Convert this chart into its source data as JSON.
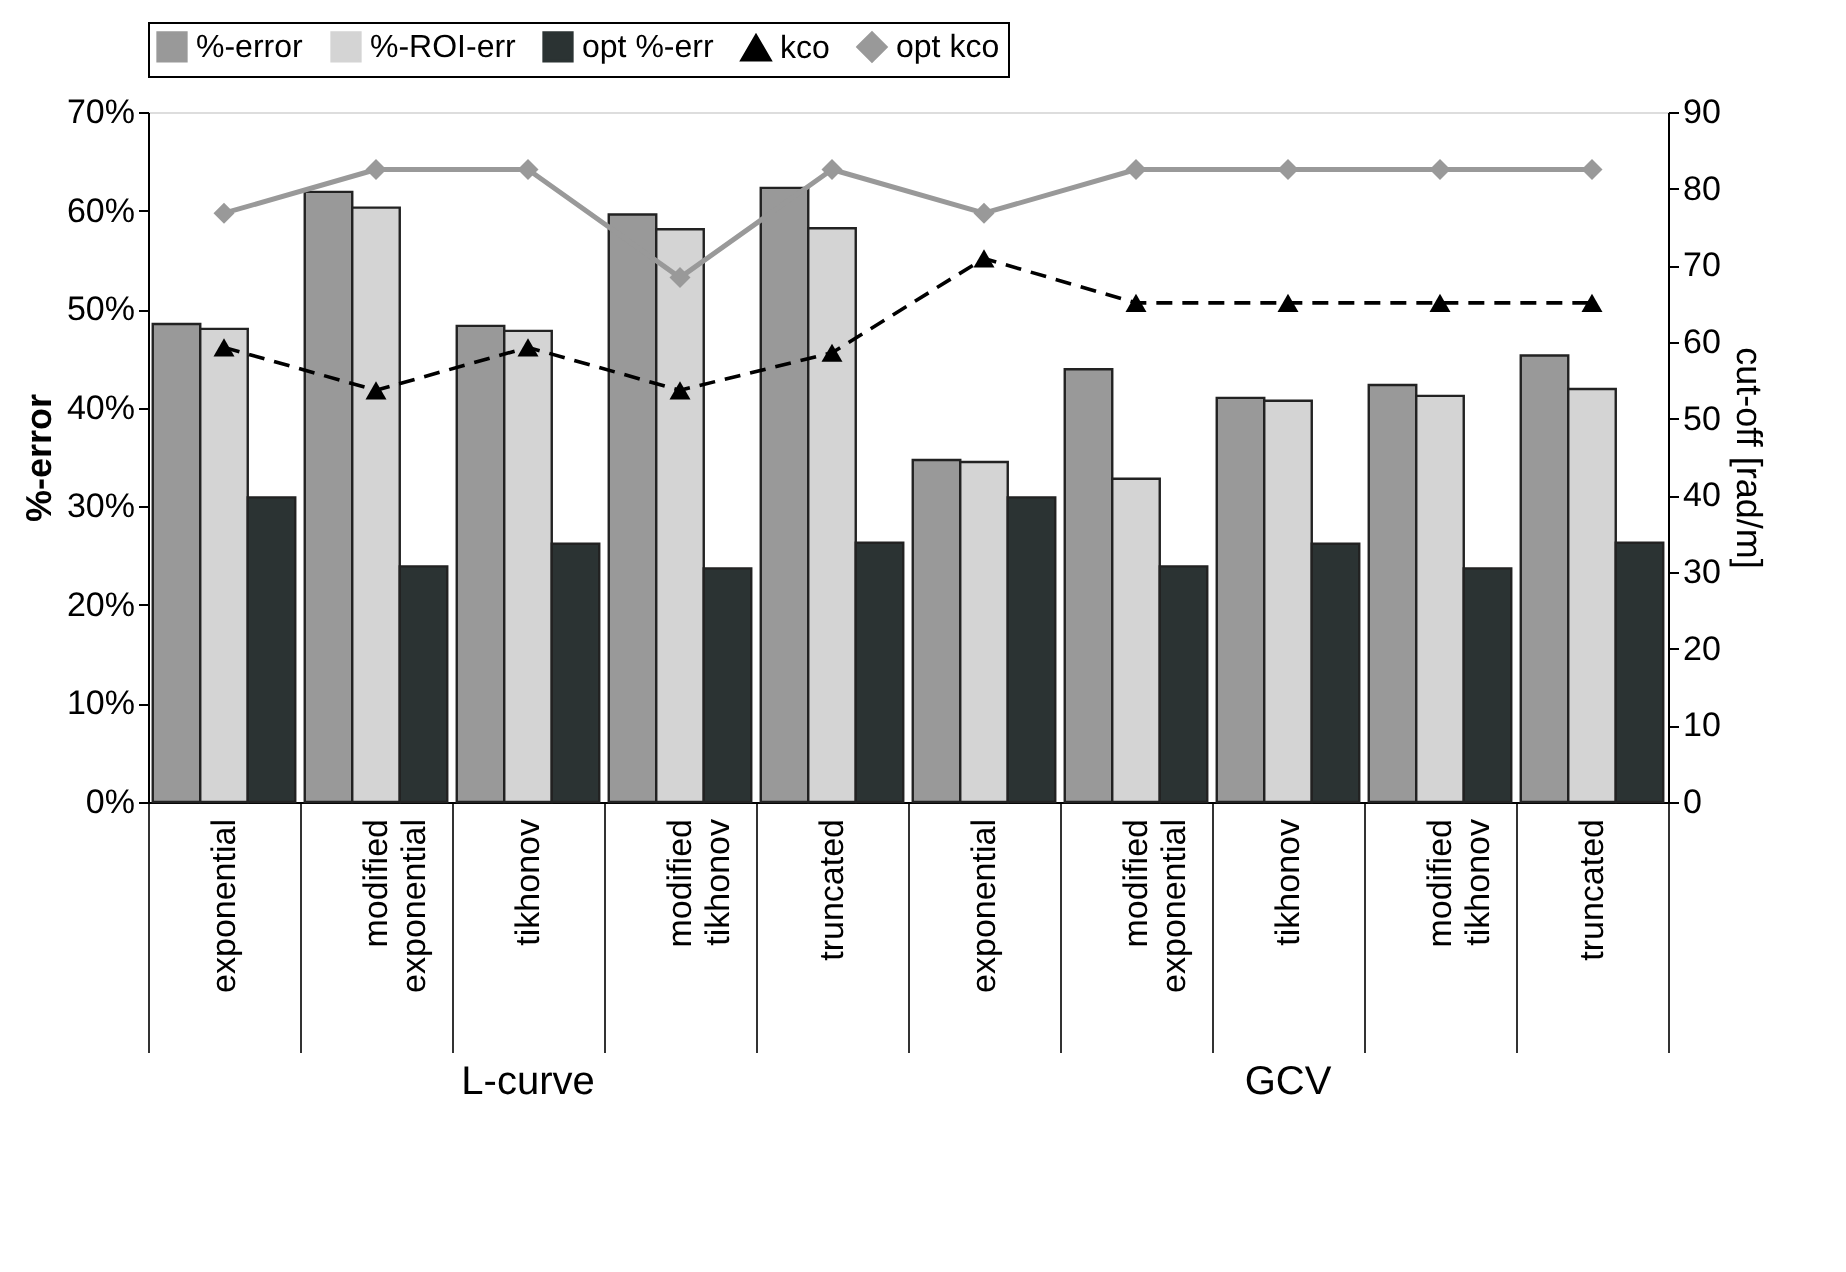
{
  "chart_data": {
    "type": "bar",
    "categories": [
      "exponential",
      "modified exponential",
      "tikhonov",
      "modified tikhonov",
      "truncated",
      "exponential",
      "modified exponential",
      "tikhonov",
      "modified tikhonov",
      "truncated"
    ],
    "series": [
      {
        "name": "%-error",
        "color": "#999999",
        "values": [
          48.5,
          61.9,
          48.3,
          59.6,
          62.3,
          34.7,
          43.9,
          41.0,
          42.3,
          45.3
        ]
      },
      {
        "name": "%-ROI-err",
        "color": "#d4d4d4",
        "values": [
          48.0,
          60.3,
          47.8,
          58.1,
          58.2,
          34.5,
          32.8,
          40.7,
          41.2,
          41.9
        ]
      },
      {
        "name": "opt %-err",
        "color": "#2b3333",
        "values": [
          30.9,
          23.9,
          26.2,
          23.7,
          26.3,
          30.9,
          23.9,
          26.2,
          23.7,
          26.3
        ]
      },
      {
        "name": "kco",
        "type": "line",
        "axis": "y2",
        "color": "#000000",
        "marker": "triangle",
        "line_style": "dashed",
        "values": [
          59.3,
          53.7,
          59.3,
          53.7,
          58.6,
          70.9,
          65.1,
          65.1,
          65.1,
          65.1
        ]
      },
      {
        "name": "opt kco",
        "type": "line",
        "axis": "y2",
        "color": "#999999",
        "marker": "diamond",
        "line_style": "solid",
        "values": [
          76.8,
          82.5,
          82.5,
          68.4,
          82.5,
          76.8,
          82.5,
          82.5,
          82.5,
          82.5
        ]
      }
    ],
    "ylabel": "%-error",
    "y2label": "cut-off [rad/m]",
    "ylim": [
      0,
      70
    ],
    "yticks": [
      {
        "value": 0,
        "label": "0%"
      },
      {
        "value": 10,
        "label": "10%"
      },
      {
        "value": 20,
        "label": "20%"
      },
      {
        "value": 30,
        "label": "30%"
      },
      {
        "value": 40,
        "label": "40%"
      },
      {
        "value": 50,
        "label": "50%"
      },
      {
        "value": 60,
        "label": "60%"
      },
      {
        "value": 70,
        "label": "70%"
      }
    ],
    "y2lim": [
      0,
      90
    ],
    "y2ticks": [
      0,
      10,
      20,
      30,
      40,
      50,
      60,
      70,
      80,
      90
    ],
    "annotations": [
      "L-curve",
      "GCV"
    ],
    "grid": false,
    "legend": "top"
  }
}
